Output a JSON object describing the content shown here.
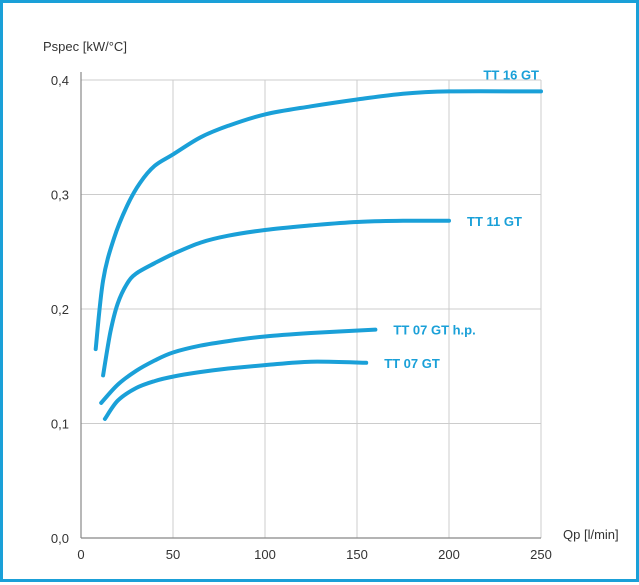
{
  "chart_data": {
    "type": "line",
    "ylabel": "Pspec [kW/°C]",
    "xlabel": "Qp [l/min]",
    "xlim": [
      0,
      250
    ],
    "ylim": [
      0,
      0.4
    ],
    "x_ticks": [
      0,
      50,
      100,
      150,
      200,
      250
    ],
    "x_tick_labels": [
      "0",
      "50",
      "100",
      "150",
      "200",
      "250"
    ],
    "y_ticks": [
      0,
      0.1,
      0.2,
      0.3,
      0.4
    ],
    "y_tick_labels": [
      "0,0",
      "0,1",
      "0,2",
      "0,3",
      "0,4"
    ],
    "grid": true,
    "color": "#1aa0d8",
    "series": [
      {
        "name": "TT 16 GT",
        "x": [
          8,
          12,
          18,
          25,
          32,
          40,
          50,
          65,
          80,
          100,
          125,
          150,
          175,
          200,
          250
        ],
        "y": [
          0.165,
          0.225,
          0.262,
          0.29,
          0.31,
          0.325,
          0.335,
          0.35,
          0.36,
          0.37,
          0.377,
          0.383,
          0.388,
          0.39,
          0.39
        ]
      },
      {
        "name": "TT 11 GT",
        "x": [
          12,
          16,
          20,
          25,
          30,
          40,
          50,
          65,
          80,
          100,
          125,
          150,
          175,
          200
        ],
        "y": [
          0.142,
          0.18,
          0.205,
          0.222,
          0.231,
          0.24,
          0.248,
          0.258,
          0.264,
          0.269,
          0.273,
          0.276,
          0.277,
          0.277
        ]
      },
      {
        "name": "TT 07 GT h.p.",
        "x": [
          11,
          20,
          30,
          40,
          50,
          65,
          80,
          100,
          125,
          160
        ],
        "y": [
          0.118,
          0.134,
          0.146,
          0.155,
          0.162,
          0.168,
          0.172,
          0.176,
          0.179,
          0.182
        ]
      },
      {
        "name": "TT 07 GT",
        "x": [
          13,
          20,
          30,
          40,
          50,
          65,
          80,
          100,
          125,
          155
        ],
        "y": [
          0.104,
          0.12,
          0.131,
          0.137,
          0.141,
          0.145,
          0.148,
          0.151,
          0.154,
          0.153
        ]
      }
    ]
  }
}
